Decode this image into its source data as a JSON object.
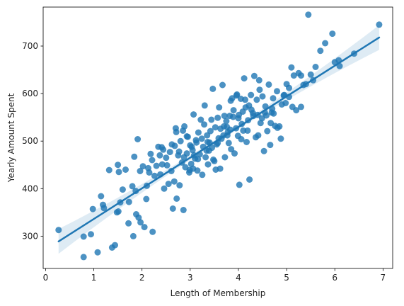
{
  "chart_data": {
    "type": "scatter",
    "title": "",
    "xlabel": "Length of Membership",
    "ylabel": "Yearly Amount Spent",
    "xlim": [
      -0.05,
      7.2
    ],
    "ylim": [
      232,
      782
    ],
    "xticks": [
      0,
      1,
      2,
      3,
      4,
      5,
      6,
      7
    ],
    "xtick_labels": [
      "0",
      "1",
      "2",
      "3",
      "4",
      "5",
      "6",
      "7"
    ],
    "yticks": [
      300,
      400,
      500,
      600,
      700
    ],
    "ytick_labels": [
      "300",
      "400",
      "500",
      "600",
      "700"
    ],
    "grid": false,
    "point_color": "#1f77b4",
    "point_opacity": 0.8,
    "line_color": "#1f77b4",
    "ci_color": "#1f77b4",
    "series": [
      {
        "kind": "scatter",
        "x": [
          0.27,
          0.79,
          0.79,
          0.94,
          0.98,
          1.08,
          1.15,
          1.19,
          1.21,
          1.32,
          1.38,
          1.44,
          1.48,
          1.51,
          1.5,
          1.52,
          1.55,
          1.6,
          1.66,
          1.72,
          1.73,
          1.8,
          1.84,
          1.82,
          1.87,
          1.88,
          1.91,
          1.93,
          1.97,
          2.02,
          2.05,
          2.09,
          2.1,
          2.13,
          2.18,
          2.22,
          2.26,
          2.3,
          2.34,
          2.38,
          2.42,
          2.46,
          2.5,
          2.55,
          2.58,
          2.61,
          2.64,
          2.67,
          2.7,
          2.72,
          2.75,
          2.78,
          2.8,
          2.83,
          2.86,
          2.88,
          2.9,
          2.93,
          2.95,
          2.98,
          3.0,
          3.02,
          3.05,
          3.07,
          3.1,
          3.12,
          3.15,
          3.17,
          3.2,
          3.22,
          3.25,
          3.27,
          3.3,
          3.32,
          3.35,
          3.37,
          3.4,
          3.42,
          3.45,
          3.47,
          3.5,
          3.52,
          3.55,
          3.57,
          3.6,
          3.62,
          3.65,
          3.67,
          3.7,
          3.72,
          3.75,
          3.77,
          3.8,
          3.82,
          3.85,
          3.87,
          3.9,
          3.92,
          3.95,
          3.97,
          4.0,
          4.02,
          4.05,
          4.07,
          4.1,
          4.12,
          4.15,
          4.17,
          4.2,
          4.23,
          4.26,
          4.3,
          4.33,
          4.36,
          4.4,
          4.43,
          4.46,
          4.5,
          4.53,
          4.56,
          4.6,
          4.63,
          4.66,
          4.7,
          4.73,
          4.76,
          4.8,
          4.85,
          4.9,
          4.95,
          5.0,
          5.05,
          5.1,
          5.15,
          5.2,
          5.3,
          5.35,
          5.4,
          5.45,
          5.5,
          5.55,
          5.6,
          5.7,
          5.8,
          5.95,
          6.0,
          6.08,
          6.1,
          6.4,
          6.92,
          2.41,
          2.87,
          2.99,
          3.13,
          3.29,
          3.44,
          3.59,
          3.71,
          3.84,
          3.96,
          4.09,
          4.22,
          4.38,
          4.55,
          4.72,
          2.68,
          2.93,
          3.08,
          3.36,
          3.53,
          3.78,
          4.01,
          4.27,
          4.49,
          4.81,
          2.21,
          2.52,
          2.77,
          3.03,
          3.24,
          3.48,
          3.69,
          3.89,
          4.14,
          4.41,
          4.67,
          4.98,
          5.25,
          1.96,
          2.37,
          2.62,
          2.85,
          3.16,
          3.39,
          3.63,
          3.83,
          4.06,
          4.31,
          4.58,
          4.88,
          5.05,
          5.3,
          2.15,
          2.44,
          2.71,
          3.06,
          3.34,
          3.57,
          3.76,
          3.99,
          4.19,
          4.44,
          4.69,
          4.94,
          5.12
        ],
        "y": [
          313,
          299,
          256,
          304,
          357,
          266,
          384,
          366,
          359,
          439,
          276,
          281,
          350,
          352,
          450,
          435,
          371,
          398,
          440,
          327,
          372,
          405,
          467,
          300,
          395,
          346,
          504,
          339,
          329,
          447,
          319,
          378,
          406,
          443,
          473,
          309,
          427,
          448,
          488,
          430,
          451,
          400,
          465,
          410,
          477,
          437,
          358,
          415,
          527,
          379,
          470,
          407,
          500,
          455,
          355,
          531,
          445,
          474,
          509,
          434,
          491,
          452,
          481,
          556,
          463,
          502,
          438,
          518,
          472,
          545,
          429,
          488,
          575,
          466,
          512,
          451,
          497,
          521,
          486,
          610,
          458,
          529,
          493,
          549,
          571,
          442,
          505,
          618,
          531,
          466,
          542,
          512,
          496,
          553,
          483,
          590,
          565,
          474,
          527,
          598,
          548,
          408,
          589,
          536,
          522,
          632,
          571,
          498,
          544,
          419,
          597,
          559,
          637,
          508,
          555,
          628,
          538,
          594,
          479,
          573,
          521,
          619,
          492,
          568,
          558,
          532,
          605,
          531,
          577,
          597,
          620,
          612,
          655,
          638,
          565,
          638,
          618,
          620,
          766,
          640,
          628,
          656,
          690,
          706,
          726,
          666,
          670,
          658,
          684,
          745,
          487,
          466,
          439,
          497,
          535,
          545,
          506,
          553,
          585,
          596,
          562,
          575,
          587,
          560,
          590,
          490,
          510,
          470,
          498,
          440,
          519,
          555,
          566,
          548,
          528,
          460,
          449,
          478,
          488,
          505,
          461,
          512,
          551,
          587,
          512,
          538,
          580,
          643,
          437,
          470,
          493,
          522,
          462,
          480,
          526,
          524,
          504,
          553,
          554,
          505,
          593,
          572,
          434,
          482,
          519,
          442,
          480,
          496,
          530,
          511,
          522,
          608,
          560,
          596,
          572
        ]
      },
      {
        "kind": "regression_line",
        "x": [
          0.27,
          6.92
        ],
        "y": [
          289,
          718
        ]
      }
    ]
  }
}
